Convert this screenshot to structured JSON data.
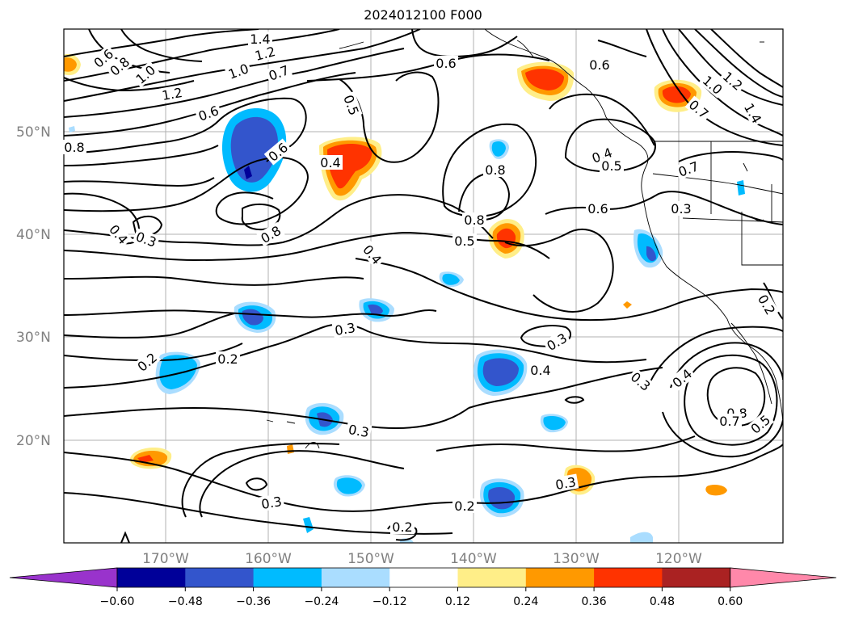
{
  "title": "2024012100 F000",
  "lat_labels": [
    "50°N",
    "40°N",
    "30°N",
    "20°N"
  ],
  "lon_labels": [
    "170°W",
    "160°W",
    "150°W",
    "140°W",
    "130°W",
    "120°W"
  ],
  "colorbar": {
    "ticks": [
      "−0.60",
      "−0.48",
      "−0.36",
      "−0.24",
      "−0.12",
      "0.12",
      "0.24",
      "0.36",
      "0.48",
      "0.60"
    ],
    "colors": [
      "#9933cc",
      "#000099",
      "#3355cc",
      "#00bbff",
      "#aaddff",
      "#ffffff",
      "#ffee88",
      "#ff9900",
      "#ff3300",
      "#aa2222",
      "#ff88aa"
    ]
  },
  "contour_labels": [
    {
      "text": "1.4"
    },
    {
      "text": "1.2"
    },
    {
      "text": "0.6"
    },
    {
      "text": "0.8"
    },
    {
      "text": "1.0"
    },
    {
      "text": "1.0"
    },
    {
      "text": "1.2"
    },
    {
      "text": "0.7"
    },
    {
      "text": "0.6"
    },
    {
      "text": "0.5"
    },
    {
      "text": "0.6"
    },
    {
      "text": "0.8"
    },
    {
      "text": "0.4"
    },
    {
      "text": "0.6"
    },
    {
      "text": "0.8"
    },
    {
      "text": "0.8"
    },
    {
      "text": "0.4"
    },
    {
      "text": "0.3"
    },
    {
      "text": "0.8"
    },
    {
      "text": "0.5"
    },
    {
      "text": "0.4"
    },
    {
      "text": "0.6"
    },
    {
      "text": "0.3"
    },
    {
      "text": "0.4"
    },
    {
      "text": "0.5"
    },
    {
      "text": "0.7"
    },
    {
      "text": "1.0"
    },
    {
      "text": "1.2"
    },
    {
      "text": "1.4"
    },
    {
      "text": "0.7"
    },
    {
      "text": "0.3"
    },
    {
      "text": "0.2"
    },
    {
      "text": "0.2"
    },
    {
      "text": "0.2"
    },
    {
      "text": "0.3"
    },
    {
      "text": "0.4"
    },
    {
      "text": "0.3"
    },
    {
      "text": "0.4"
    },
    {
      "text": "0.8"
    },
    {
      "text": "0.7"
    },
    {
      "text": "0.5"
    },
    {
      "text": "0.3"
    },
    {
      "text": "0.3"
    },
    {
      "text": "0.3"
    },
    {
      "text": "0.2"
    },
    {
      "text": "0.2"
    },
    {
      "text": "0.6"
    }
  ]
}
